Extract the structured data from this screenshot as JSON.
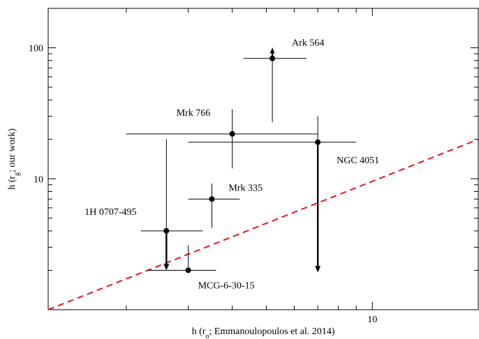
{
  "chart_data": {
    "type": "scatter",
    "title": "",
    "xlabel": "h (r_o; Emmanoulopoulos et al. 2014)",
    "ylabel": "h (r_g; our work)",
    "xscale": "log",
    "yscale": "log",
    "xlim": [
      1.2,
      20
    ],
    "ylim": [
      1,
      200
    ],
    "x_tick_labels": [
      {
        "value": 10,
        "label": "10"
      }
    ],
    "y_tick_labels": [
      {
        "value": 10,
        "label": "10"
      },
      {
        "value": 100,
        "label": "100"
      }
    ],
    "grid": false,
    "points": [
      {
        "name": "Ark 564",
        "x": 5.2,
        "y": 83,
        "xerr": [
          4.3,
          6.5
        ],
        "yerr": [
          27,
          100
        ],
        "upper_limit": false,
        "lower_limit": true
      },
      {
        "name": "Mrk 766",
        "x": 4.0,
        "y": 22,
        "xerr": [
          2.0,
          7.0
        ],
        "yerr": [
          12,
          34
        ],
        "upper_limit": false,
        "lower_limit": false
      },
      {
        "name": "NGC 4051",
        "x": 7.0,
        "y": 19,
        "xerr": [
          3.0,
          9.0
        ],
        "yerr": [
          null,
          30
        ],
        "upper_limit": true,
        "lower_limit": false,
        "limit_to": 1.93
      },
      {
        "name": "Mrk 335",
        "x": 3.5,
        "y": 7.0,
        "xerr": [
          3.0,
          4.2
        ],
        "yerr": [
          4.2,
          9.2
        ],
        "upper_limit": false,
        "lower_limit": false
      },
      {
        "name": "1H 0707-495",
        "x": 2.6,
        "y": 4.0,
        "xerr": [
          2.2,
          3.3
        ],
        "yerr": [
          null,
          20
        ],
        "upper_limit": true,
        "lower_limit": false,
        "limit_to": 2.0
      },
      {
        "name": "MCG-6-30-15",
        "x": 3.0,
        "y": 2.0,
        "xerr": [
          2.3,
          3.6
        ],
        "yerr": [
          null,
          3.1
        ],
        "upper_limit": false,
        "lower_limit": false
      }
    ],
    "reference_line": {
      "style": "dashed",
      "color": "#e8151b",
      "x": [
        1.2,
        20
      ],
      "y": [
        1,
        20
      ]
    }
  }
}
